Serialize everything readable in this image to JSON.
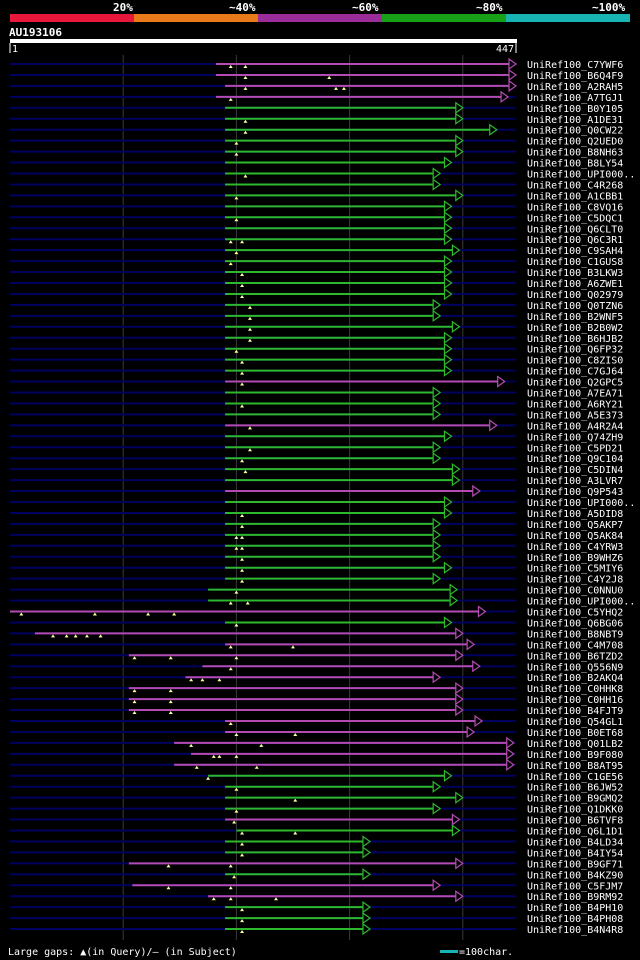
{
  "chart_data": {
    "type": "alignment-overview",
    "title": "AU193106",
    "query_length": 447,
    "query_start_label": "1",
    "query_end_label": "447",
    "scale_labels": [
      "20%",
      "~40%",
      "~60%",
      "~80%",
      "~100%"
    ],
    "scale_colors": [
      "#e8173c",
      "#e87a1a",
      "#9b2d9b",
      "#18a018",
      "#18b4b4"
    ],
    "identity_colors": {
      "low": "#b34bb3",
      "high": "#2db82d",
      "background": "#000060"
    },
    "footer_text": "Large gaps: ▲(in Query)/– (in Subject)",
    "scale_bar_label": "=100char.",
    "rows": [
      {
        "id": "UniRef100_C7YWF6",
        "s": 182,
        "e": 447,
        "c": "low",
        "g": [
          195,
          208
        ]
      },
      {
        "id": "UniRef100_B6Q4F9",
        "s": 182,
        "e": 447,
        "c": "low",
        "g": [
          208,
          282
        ]
      },
      {
        "id": "UniRef100_A2RAH5",
        "s": 190,
        "e": 447,
        "c": "low",
        "g": [
          208,
          288,
          295
        ]
      },
      {
        "id": "UniRef100_A7TGJ1",
        "s": 182,
        "e": 440,
        "c": "low",
        "g": [
          195
        ]
      },
      {
        "id": "UniRef100_B0Y105",
        "s": 190,
        "e": 400,
        "c": "high",
        "g": []
      },
      {
        "id": "UniRef100_A1DE31",
        "s": 190,
        "e": 400,
        "c": "high",
        "g": [
          208
        ]
      },
      {
        "id": "UniRef100_Q0CW22",
        "s": 190,
        "e": 430,
        "c": "high",
        "g": [
          208
        ]
      },
      {
        "id": "UniRef100_Q2UED0",
        "s": 190,
        "e": 400,
        "c": "high",
        "g": [
          200
        ]
      },
      {
        "id": "UniRef100_B8NH63",
        "s": 190,
        "e": 400,
        "c": "high",
        "g": [
          200
        ]
      },
      {
        "id": "UniRef100_B8LY54",
        "s": 190,
        "e": 390,
        "c": "high",
        "g": []
      },
      {
        "id": "UniRef100_UPI000..",
        "s": 190,
        "e": 380,
        "c": "high",
        "g": [
          208
        ]
      },
      {
        "id": "UniRef100_C4R268",
        "s": 190,
        "e": 380,
        "c": "high",
        "g": []
      },
      {
        "id": "UniRef100_A1CBB1",
        "s": 190,
        "e": 400,
        "c": "high",
        "g": [
          200
        ]
      },
      {
        "id": "UniRef100_C8VQ16",
        "s": 190,
        "e": 390,
        "c": "high",
        "g": []
      },
      {
        "id": "UniRef100_C5DQC1",
        "s": 190,
        "e": 390,
        "c": "high",
        "g": [
          200
        ]
      },
      {
        "id": "UniRef100_Q6CLT0",
        "s": 190,
        "e": 390,
        "c": "high",
        "g": []
      },
      {
        "id": "UniRef100_Q6C3R1",
        "s": 190,
        "e": 390,
        "c": "high",
        "g": [
          195,
          205
        ]
      },
      {
        "id": "UniRef100_C9SAH4",
        "s": 190,
        "e": 397,
        "c": "high",
        "g": [
          200
        ]
      },
      {
        "id": "UniRef100_C1GUS8",
        "s": 190,
        "e": 390,
        "c": "high",
        "g": [
          195
        ]
      },
      {
        "id": "UniRef100_B3LKW3",
        "s": 190,
        "e": 390,
        "c": "high",
        "g": [
          205
        ]
      },
      {
        "id": "UniRef100_A6ZWE1",
        "s": 190,
        "e": 390,
        "c": "high",
        "g": [
          205
        ]
      },
      {
        "id": "UniRef100_Q02979",
        "s": 190,
        "e": 390,
        "c": "high",
        "g": [
          205
        ]
      },
      {
        "id": "UniRef100_Q0TZN6",
        "s": 190,
        "e": 380,
        "c": "high",
        "g": [
          212
        ]
      },
      {
        "id": "UniRef100_B2WNF5",
        "s": 190,
        "e": 380,
        "c": "high",
        "g": [
          212
        ]
      },
      {
        "id": "UniRef100_B2B0W2",
        "s": 190,
        "e": 397,
        "c": "high",
        "g": [
          212
        ]
      },
      {
        "id": "UniRef100_B6HJB2",
        "s": 190,
        "e": 390,
        "c": "high",
        "g": [
          212
        ]
      },
      {
        "id": "UniRef100_Q6FP32",
        "s": 190,
        "e": 390,
        "c": "high",
        "g": [
          200
        ]
      },
      {
        "id": "UniRef100_C8ZIS0",
        "s": 190,
        "e": 390,
        "c": "high",
        "g": [
          205
        ]
      },
      {
        "id": "UniRef100_C7GJ64",
        "s": 190,
        "e": 390,
        "c": "high",
        "g": [
          205
        ]
      },
      {
        "id": "UniRef100_Q2GPC5",
        "s": 190,
        "e": 437,
        "c": "low",
        "g": [
          205
        ]
      },
      {
        "id": "UniRef100_A7EA71",
        "s": 190,
        "e": 380,
        "c": "high",
        "g": []
      },
      {
        "id": "UniRef100_A6RY21",
        "s": 190,
        "e": 380,
        "c": "high",
        "g": [
          205
        ]
      },
      {
        "id": "UniRef100_A5E373",
        "s": 190,
        "e": 380,
        "c": "high",
        "g": []
      },
      {
        "id": "UniRef100_A4R2A4",
        "s": 190,
        "e": 430,
        "c": "low",
        "g": [
          212
        ]
      },
      {
        "id": "UniRef100_Q74ZH9",
        "s": 190,
        "e": 390,
        "c": "high",
        "g": []
      },
      {
        "id": "UniRef100_C5PD21",
        "s": 190,
        "e": 380,
        "c": "high",
        "g": [
          212
        ]
      },
      {
        "id": "UniRef100_Q9C104",
        "s": 190,
        "e": 380,
        "c": "high",
        "g": [
          205
        ]
      },
      {
        "id": "UniRef100_C5DIN4",
        "s": 190,
        "e": 397,
        "c": "high",
        "g": [
          208
        ]
      },
      {
        "id": "UniRef100_A3LVR7",
        "s": 190,
        "e": 397,
        "c": "high",
        "g": []
      },
      {
        "id": "UniRef100_Q9P543",
        "s": 190,
        "e": 415,
        "c": "low",
        "g": []
      },
      {
        "id": "UniRef100_UPI000..",
        "s": 190,
        "e": 390,
        "c": "high",
        "g": []
      },
      {
        "id": "UniRef100_A5DID8",
        "s": 190,
        "e": 390,
        "c": "high",
        "g": [
          205
        ]
      },
      {
        "id": "UniRef100_Q5AKP7",
        "s": 190,
        "e": 380,
        "c": "high",
        "g": [
          205
        ]
      },
      {
        "id": "UniRef100_Q5AK84",
        "s": 190,
        "e": 380,
        "c": "high",
        "g": [
          200,
          205
        ]
      },
      {
        "id": "UniRef100_C4YRW3",
        "s": 190,
        "e": 380,
        "c": "high",
        "g": [
          200,
          205
        ]
      },
      {
        "id": "UniRef100_B9WHZ6",
        "s": 190,
        "e": 380,
        "c": "high",
        "g": [
          205
        ]
      },
      {
        "id": "UniRef100_C5MIY6",
        "s": 190,
        "e": 390,
        "c": "high",
        "g": [
          205
        ]
      },
      {
        "id": "UniRef100_C4Y2J8",
        "s": 190,
        "e": 380,
        "c": "high",
        "g": [
          205
        ]
      },
      {
        "id": "UniRef100_C0NNU0",
        "s": 175,
        "e": 395,
        "c": "high",
        "g": [
          200
        ]
      },
      {
        "id": "UniRef100_UPI000..",
        "s": 175,
        "e": 395,
        "c": "high",
        "g": [
          195,
          210
        ]
      },
      {
        "id": "UniRef100_C5YHQ2",
        "s": 0,
        "e": 420,
        "c": "low",
        "g": [
          10,
          75,
          122,
          145
        ]
      },
      {
        "id": "UniRef100_Q6BG06",
        "s": 190,
        "e": 390,
        "c": "high",
        "g": [
          200
        ]
      },
      {
        "id": "UniRef100_B8NBT9",
        "s": 22,
        "e": 400,
        "c": "low",
        "g": [
          38,
          50,
          58,
          68,
          80
        ]
      },
      {
        "id": "UniRef100_C4M708",
        "s": 190,
        "e": 410,
        "c": "low",
        "g": [
          195,
          250
        ]
      },
      {
        "id": "UniRef100_B6TZD2",
        "s": 105,
        "e": 400,
        "c": "low",
        "g": [
          110,
          142,
          200
        ]
      },
      {
        "id": "UniRef100_Q556N9",
        "s": 170,
        "e": 415,
        "c": "low",
        "g": [
          195
        ]
      },
      {
        "id": "UniRef100_B2AKQ4",
        "s": 155,
        "e": 380,
        "c": "low",
        "g": [
          160,
          170,
          185
        ]
      },
      {
        "id": "UniRef100_C0HHK8",
        "s": 105,
        "e": 400,
        "c": "low",
        "g": [
          110,
          142
        ]
      },
      {
        "id": "UniRef100_C0HH16",
        "s": 105,
        "e": 400,
        "c": "low",
        "g": [
          110,
          142
        ]
      },
      {
        "id": "UniRef100_B4FJT9",
        "s": 105,
        "e": 400,
        "c": "low",
        "g": [
          110,
          142
        ]
      },
      {
        "id": "UniRef100_Q54GL1",
        "s": 190,
        "e": 417,
        "c": "low",
        "g": [
          195
        ]
      },
      {
        "id": "UniRef100_B0ET68",
        "s": 190,
        "e": 410,
        "c": "low",
        "g": [
          200,
          252
        ]
      },
      {
        "id": "UniRef100_Q01LB2",
        "s": 145,
        "e": 445,
        "c": "low",
        "g": [
          160,
          222
        ]
      },
      {
        "id": "UniRef100_B9F080",
        "s": 160,
        "e": 445,
        "c": "low",
        "g": [
          180,
          185,
          200
        ]
      },
      {
        "id": "UniRef100_B8AT95",
        "s": 145,
        "e": 445,
        "c": "low",
        "g": [
          165,
          218
        ]
      },
      {
        "id": "UniRef100_C1GE56",
        "s": 175,
        "e": 390,
        "c": "high",
        "g": [
          175
        ]
      },
      {
        "id": "UniRef100_B6JW52",
        "s": 190,
        "e": 380,
        "c": "high",
        "g": [
          200
        ]
      },
      {
        "id": "UniRef100_B9GMQ2",
        "s": 190,
        "e": 400,
        "c": "high",
        "g": [
          252
        ]
      },
      {
        "id": "UniRef100_Q1DKK0",
        "s": 190,
        "e": 380,
        "c": "high",
        "g": [
          200
        ]
      },
      {
        "id": "UniRef100_B6TVF8",
        "s": 190,
        "e": 397,
        "c": "low",
        "g": [
          198
        ]
      },
      {
        "id": "UniRef100_Q6L1D1",
        "s": 200,
        "e": 397,
        "c": "high",
        "g": [
          205,
          252
        ]
      },
      {
        "id": "UniRef100_B4LD34",
        "s": 190,
        "e": 318,
        "c": "high",
        "g": [
          205
        ]
      },
      {
        "id": "UniRef100_B4IY54",
        "s": 190,
        "e": 318,
        "c": "high",
        "g": [
          205
        ]
      },
      {
        "id": "UniRef100_B9GF71",
        "s": 105,
        "e": 400,
        "c": "low",
        "g": [
          140,
          195
        ]
      },
      {
        "id": "UniRef100_B4KZ90",
        "s": 190,
        "e": 318,
        "c": "high",
        "g": [
          198
        ]
      },
      {
        "id": "UniRef100_C5FJM7",
        "s": 108,
        "e": 380,
        "c": "low",
        "g": [
          140,
          195
        ]
      },
      {
        "id": "UniRef100_B9RM92",
        "s": 175,
        "e": 400,
        "c": "low",
        "g": [
          180,
          195,
          235
        ]
      },
      {
        "id": "UniRef100_B4PH10",
        "s": 190,
        "e": 318,
        "c": "high",
        "g": [
          205
        ]
      },
      {
        "id": "UniRef100_B4PH08",
        "s": 190,
        "e": 318,
        "c": "high",
        "g": [
          205
        ]
      },
      {
        "id": "UniRef100_B4N4R8",
        "s": 190,
        "e": 318,
        "c": "high",
        "g": [
          205
        ]
      }
    ]
  }
}
